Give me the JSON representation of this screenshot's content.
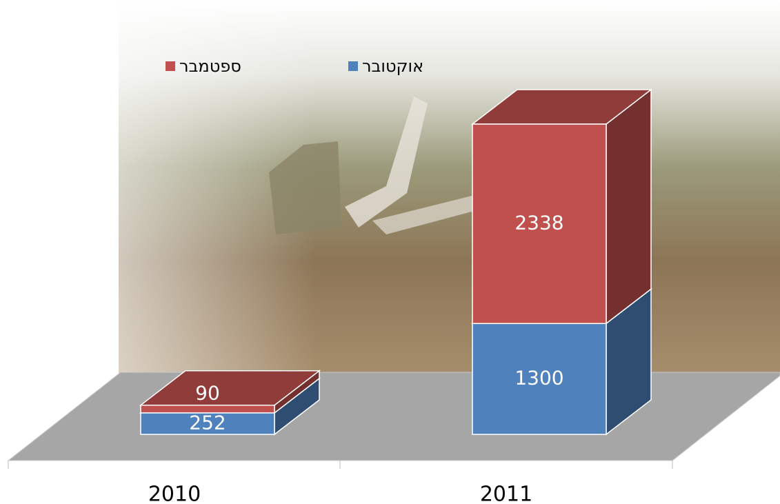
{
  "chart_data": {
    "type": "bar3d-stacked",
    "categories": [
      "2010",
      "2011"
    ],
    "series": [
      {
        "name": "אוקטובר",
        "color": "#4f81bd",
        "values": [
          252,
          1300
        ]
      },
      {
        "name": "ספטמבר",
        "color": "#c0504d",
        "values": [
          90,
          2338
        ]
      }
    ]
  }
}
